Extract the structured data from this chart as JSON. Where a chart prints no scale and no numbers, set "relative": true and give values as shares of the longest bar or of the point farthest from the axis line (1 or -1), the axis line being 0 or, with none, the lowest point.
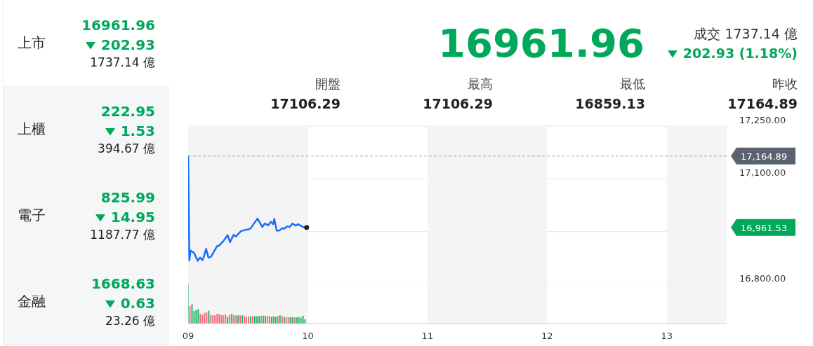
{
  "chart_data": [
    {
      "type": "other",
      "annotations": [
        "上市",
        "16961.96",
        "202.93",
        "1737.14 億",
        "上櫃",
        "222.95",
        "1.53",
        "394.67 億",
        "電子",
        "825.99",
        "14.95",
        "1187.77 億",
        "金融",
        "1668.63",
        "0.63",
        "23.26 億"
      ]
    },
    {
      "type": "other",
      "title": "16961.96",
      "annotations": [
        "成交 1737.14 億",
        "202.93 (1.18%)",
        "開盤",
        "17106.29",
        "最高",
        "17106.29",
        "最低",
        "16859.13",
        "昨收",
        "17164.89"
      ]
    },
    {
      "type": "line",
      "x": [
        9,
        9.01,
        9.02,
        9.05,
        9.08,
        9.1,
        9.12,
        9.13,
        9.15,
        9.17,
        9.19,
        9.24,
        9.26,
        9.29,
        9.33,
        9.35,
        9.38,
        9.4,
        9.44,
        9.48,
        9.52,
        9.55,
        9.58,
        9.62,
        9.64,
        9.67,
        9.69,
        9.71,
        9.72,
        9.74,
        9.76,
        9.79,
        9.8,
        9.83,
        9.85,
        9.87,
        9.9,
        9.92,
        9.96,
        9.99
      ],
      "series": [
        {
          "color": "#1a6dff",
          "values": [
            17165,
            16868,
            16896,
            16889,
            16867,
            16876,
            16869,
            16878,
            16901,
            16876,
            16878,
            16908,
            16911,
            16921,
            16940,
            16920,
            16941,
            16936,
            16951,
            16955,
            16958,
            16973,
            16987,
            16963,
            16973,
            16968,
            16978,
            16971,
            16986,
            16953,
            16953,
            16960,
            16958,
            16965,
            16963,
            16973,
            16967,
            16971,
            16963,
            16962
          ]
        }
      ],
      "xlim": [
        9,
        13.5
      ],
      "ylim": [
        16800,
        17250
      ],
      "yticks": [
        {
          "value": 16800,
          "label": "16,800.00"
        },
        {
          "value": 16950,
          "label": null
        },
        {
          "value": 17100,
          "label": "17,100.00"
        },
        {
          "value": 17250,
          "label": "17,250.00"
        }
      ],
      "grid": "y",
      "marker": "none",
      "tick_labels": "y",
      "ref_lines": [
        {
          "axis": "y",
          "value": 17164.89,
          "label": "17,164.89",
          "color": "#5a6270",
          "line_style": "dashed"
        }
      ],
      "bands": [
        {
          "axis": "x",
          "from": 9,
          "to": 10,
          "color": "#f4f4f4"
        },
        {
          "axis": "x",
          "from": 11,
          "to": 12,
          "color": "#f4f4f4"
        },
        {
          "axis": "x",
          "from": 13,
          "to": 13.5,
          "color": "#f4f4f4"
        }
      ],
      "annotations": [
        "16,961.53"
      ]
    },
    {
      "type": "bar",
      "relative": true,
      "tick_labels": "x",
      "x": [
        9,
        9.0175,
        9.035,
        9.0525,
        9.07,
        9.0875,
        9.105,
        9.1225,
        9.14,
        9.1575,
        9.175,
        9.1925,
        9.21,
        9.2275,
        9.245,
        9.2625,
        9.28,
        9.2975,
        9.315,
        9.3325,
        9.35,
        9.3675,
        9.385,
        9.4025,
        9.42,
        9.4375,
        9.455,
        9.4725,
        9.49,
        9.5075,
        9.525,
        9.5425,
        9.56,
        9.5775,
        9.595,
        9.6125,
        9.63,
        9.6475,
        9.665,
        9.6825,
        9.7,
        9.7175,
        9.735,
        9.7525,
        9.77,
        9.7875,
        9.805,
        9.8225,
        9.84,
        9.8575,
        9.875,
        9.8925,
        9.91,
        9.9275,
        9.945,
        9.9625,
        9.98
      ],
      "values": [
        1.0,
        0.44,
        0.49,
        0.32,
        0.35,
        0.37,
        0.25,
        0.22,
        0.27,
        0.29,
        0.33,
        0.22,
        0.21,
        0.21,
        0.25,
        0.24,
        0.22,
        0.21,
        0.23,
        0.17,
        0.22,
        0.25,
        0.21,
        0.21,
        0.21,
        0.21,
        0.21,
        0.19,
        0.17,
        0.18,
        0.19,
        0.19,
        0.19,
        0.19,
        0.19,
        0.2,
        0.2,
        0.2,
        0.19,
        0.19,
        0.17,
        0.19,
        0.17,
        0.19,
        0.21,
        0.19,
        0.17,
        0.16,
        0.16,
        0.17,
        0.16,
        0.16,
        0.16,
        0.17,
        0.15,
        0.2,
        0.11
      ],
      "colors": [
        "#27b36e",
        "#f26d7d",
        "#27b36e",
        "#27b36e",
        "#27b36e",
        "#27b36e",
        "#f26d7d",
        "#f26d7d",
        "#f26d7d",
        "#f26d7d",
        "#27b36e",
        "#f26d7d",
        "#f26d7d",
        "#f26d7d",
        "#f26d7d",
        "#f26d7d",
        "#f26d7d",
        "#f26d7d",
        "#f26d7d",
        "#27b36e",
        "#f26d7d",
        "#27b36e",
        "#f26d7d",
        "#f26d7d",
        "#27b36e",
        "#f26d7d",
        "#27b36e",
        "#f26d7d",
        "#f26d7d",
        "#f26d7d",
        "#27b36e",
        "#f26d7d",
        "#27b36e",
        "#27b36e",
        "#27b36e",
        "#f26d7d",
        "#27b36e",
        "#27b36e",
        "#f26d7d",
        "#f26d7d",
        "#27b36e",
        "#27b36e",
        "#27b36e",
        "#f26d7d",
        "#27b36e",
        "#f26d7d",
        "#27b36e",
        "#f26d7d",
        "#f26d7d",
        "#27b36e",
        "#27b36e",
        "#f26d7d",
        "#27b36e",
        "#27b36e",
        "#27b36e",
        "#27b36e",
        "#27b36e"
      ],
      "xlim": [
        9,
        13.5
      ],
      "xticks": [
        {
          "value": 9,
          "label": "09"
        },
        {
          "value": 10,
          "label": "10"
        },
        {
          "value": 11,
          "label": "11"
        },
        {
          "value": 12,
          "label": "12"
        },
        {
          "value": 13,
          "label": "13"
        }
      ],
      "bands": [
        {
          "axis": "x",
          "from": 9,
          "to": 10,
          "color": "#f4f4f4"
        },
        {
          "axis": "x",
          "from": 11,
          "to": 12,
          "color": "#f4f4f4"
        },
        {
          "axis": "x",
          "from": 13,
          "to": 13.5,
          "color": "#f4f4f4"
        }
      ]
    }
  ]
}
